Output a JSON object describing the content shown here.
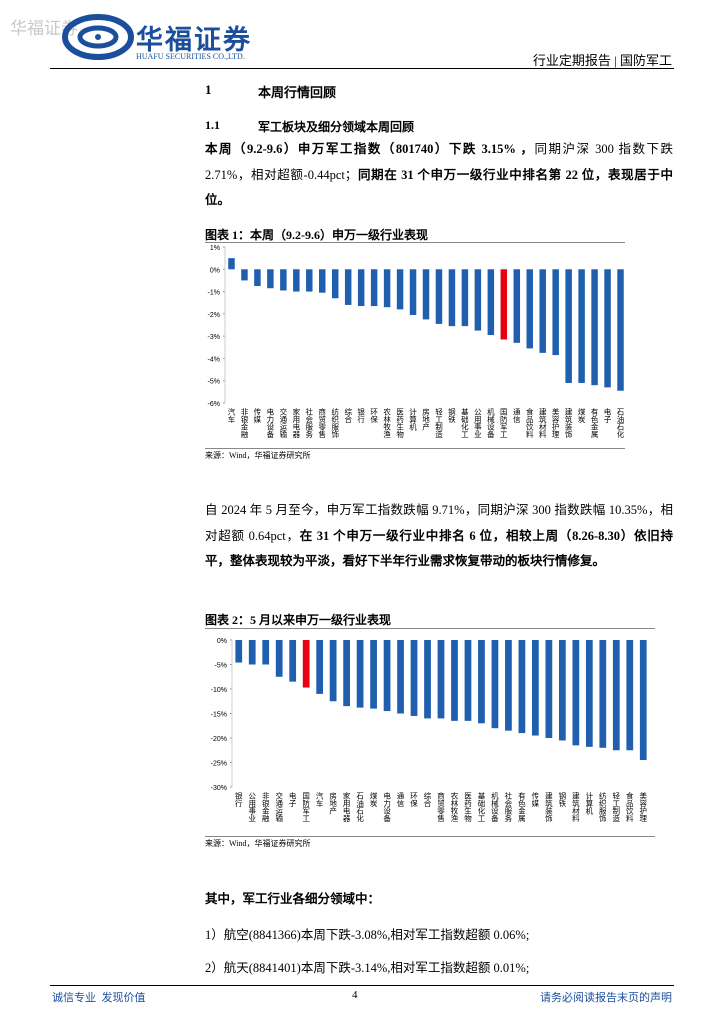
{
  "watermark": "华福证券",
  "header": {
    "company": "华福证券",
    "company_en": "HUAFU SECURITIES CO.,LTD.",
    "report": "行业定期报告 | 国防军工"
  },
  "section": {
    "number": "1",
    "title": "本周行情回顾"
  },
  "subsection": {
    "number": "1.1",
    "title": "军工板块及细分领域本周回顾"
  },
  "paragraphs": [
    {
      "runs": [
        {
          "text": "本周（9.2-9.6）申万军工指数（801740）下跌 3.15% ，",
          "bold": true
        },
        {
          "text": "同期沪深 300 指数下跌 2.71%，相对超额-0.44pct；",
          "bold": false
        },
        {
          "text": "同期在 31 个申万一级行业中排名第 22 位，表现居于中位。",
          "bold": true
        }
      ]
    },
    {
      "runs": [
        {
          "text": "自 2024 年 5 月至今，申万军工指数跌幅 9.71%，同期沪深 300 指数跌幅 10.35%，相对超额 0.64pct，",
          "bold": false
        },
        {
          "text": "在 31 个申万一级行业中排名 6 位，相较上周（8.26-8.30）依旧持平，整体表现较为平淡，看好下半年行业需求恢复带动的板块行情修复。",
          "bold": true
        }
      ]
    },
    {
      "runs": [
        {
          "text": "其中，军工行业各细分领域中：",
          "bold": true
        }
      ]
    },
    {
      "runs": [
        {
          "text": "1）航空(8841366)本周下跌-3.08%,相对军工指数超额 0.06%;",
          "bold": false
        }
      ]
    },
    {
      "runs": [
        {
          "text": "2）航天(8841401)本周下跌-3.14%,相对军工指数超额 0.01%;",
          "bold": false
        }
      ]
    }
  ],
  "chart_data": [
    {
      "type": "bar",
      "title": "图表 1：本周（9.2-9.6）申万一级行业表现",
      "source": "来源：Wind，华福证券研究所",
      "categories": [
        "汽车",
        "非银金融",
        "传媒",
        "电力设备",
        "交通运输",
        "家用电器",
        "社会服务",
        "商贸零售",
        "纺织服饰",
        "综合",
        "银行",
        "环保",
        "农林牧渔",
        "医药生物",
        "计算机",
        "房地产",
        "轻工制造",
        "钢铁",
        "基础化工",
        "公用事业",
        "机械设备",
        "国防军工",
        "通信",
        "食品饮料",
        "建筑材料",
        "美容护理",
        "建筑装饰",
        "煤炭",
        "有色金属",
        "电子",
        "石油石化"
      ],
      "values": [
        0.5,
        -0.5,
        -0.75,
        -0.85,
        -0.95,
        -1.0,
        -1.0,
        -1.05,
        -1.3,
        -1.6,
        -1.65,
        -1.65,
        -1.7,
        -1.8,
        -2.05,
        -2.25,
        -2.45,
        -2.55,
        -2.55,
        -2.75,
        -2.95,
        -3.15,
        -3.3,
        -3.55,
        -3.75,
        -3.85,
        -5.1,
        -5.1,
        -5.2,
        -5.3,
        -5.45
      ],
      "colors": [
        "#1f5fae",
        "#1f5fae",
        "#1f5fae",
        "#1f5fae",
        "#1f5fae",
        "#1f5fae",
        "#1f5fae",
        "#1f5fae",
        "#1f5fae",
        "#1f5fae",
        "#1f5fae",
        "#1f5fae",
        "#1f5fae",
        "#1f5fae",
        "#1f5fae",
        "#1f5fae",
        "#1f5fae",
        "#1f5fae",
        "#1f5fae",
        "#1f5fae",
        "#1f5fae",
        "#e60012",
        "#1f5fae",
        "#1f5fae",
        "#1f5fae",
        "#1f5fae",
        "#1f5fae",
        "#1f5fae",
        "#1f5fae",
        "#1f5fae",
        "#1f5fae"
      ],
      "ylim": [
        -6,
        1
      ],
      "yticks": [
        {
          "value": 1,
          "label": "1%"
        },
        {
          "value": 0,
          "label": "0%"
        },
        {
          "value": -1,
          "label": "-1%"
        },
        {
          "value": -2,
          "label": "-2%"
        },
        {
          "value": -3,
          "label": "-3%"
        },
        {
          "value": -4,
          "label": "-4%"
        },
        {
          "value": -5,
          "label": "-5%"
        },
        {
          "value": -6,
          "label": "-6%"
        }
      ]
    },
    {
      "type": "bar",
      "title": "图表 2：5 月以来申万一级行业表现",
      "source": "来源：Wind，华福证券研究所",
      "categories": [
        "银行",
        "公用事业",
        "非银金融",
        "交通运输",
        "电子",
        "国防军工",
        "汽车",
        "房地产",
        "家用电器",
        "石油石化",
        "煤炭",
        "电力设备",
        "通信",
        "环保",
        "综合",
        "商贸零售",
        "农林牧渔",
        "医药生物",
        "基础化工",
        "机械设备",
        "社会服务",
        "有色金属",
        "传媒",
        "建筑装饰",
        "钢铁",
        "建筑材料",
        "计算机",
        "纺织服饰",
        "轻工制造",
        "食品饮料",
        "美容护理"
      ],
      "values": [
        -4.6,
        -5,
        -5,
        -7.5,
        -8.5,
        -9.7,
        -11,
        -12.5,
        -13.5,
        -13.8,
        -14,
        -14.5,
        -15,
        -15.5,
        -16,
        -16,
        -16.5,
        -16.5,
        -17,
        -18,
        -18.5,
        -19,
        -19.5,
        -20,
        -20.5,
        -21.5,
        -21.8,
        -22,
        -22.5,
        -22.5,
        -24.5
      ],
      "colors": [
        "#1f5fae",
        "#1f5fae",
        "#1f5fae",
        "#1f5fae",
        "#1f5fae",
        "#e60012",
        "#1f5fae",
        "#1f5fae",
        "#1f5fae",
        "#1f5fae",
        "#1f5fae",
        "#1f5fae",
        "#1f5fae",
        "#1f5fae",
        "#1f5fae",
        "#1f5fae",
        "#1f5fae",
        "#1f5fae",
        "#1f5fae",
        "#1f5fae",
        "#1f5fae",
        "#1f5fae",
        "#1f5fae",
        "#1f5fae",
        "#1f5fae",
        "#1f5fae",
        "#1f5fae",
        "#1f5fae",
        "#1f5fae",
        "#1f5fae",
        "#1f5fae"
      ],
      "ylim": [
        -30,
        0
      ],
      "yticks": [
        {
          "value": 0,
          "label": "0%"
        },
        {
          "value": -5,
          "label": "-5%"
        },
        {
          "value": -10,
          "label": "-10%"
        },
        {
          "value": -15,
          "label": "-15%"
        },
        {
          "value": -20,
          "label": "-20%"
        },
        {
          "value": -25,
          "label": "-25%"
        },
        {
          "value": -30,
          "label": "-30%"
        }
      ]
    }
  ],
  "footer": {
    "left": "诚信专业  发现价值",
    "page": "4",
    "right": "请务必阅读报告末页的声明"
  }
}
